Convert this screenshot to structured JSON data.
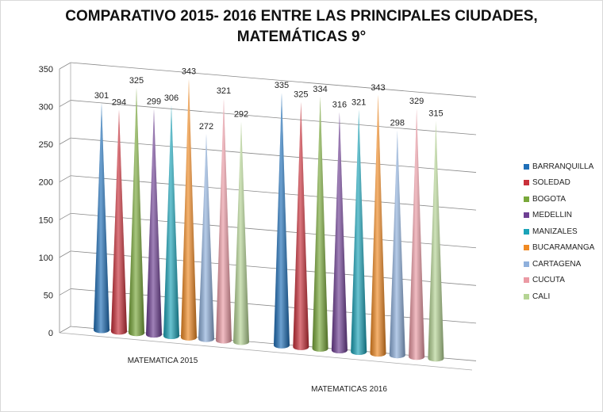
{
  "chart_data": {
    "type": "bar",
    "style": "3d-cone",
    "title": "COMPARATIVO 2015- 2016 ENTRE LAS PRINCIPALES CIUDADES,",
    "title_line2": "MATEMÁTICAS 9°",
    "categories": [
      "MATEMATICA 2015",
      "MATEMATICAS 2016"
    ],
    "ylim": [
      0,
      350
    ],
    "yticks": [
      0,
      50,
      100,
      150,
      200,
      250,
      300,
      350
    ],
    "grid": true,
    "legend_position": "right",
    "series": [
      {
        "name": "BARRANQUILLA",
        "color": "#1f6fb8",
        "values": [
          301,
          335
        ]
      },
      {
        "name": "SOLEDAD",
        "color": "#c9303a",
        "values": [
          294,
          325
        ]
      },
      {
        "name": "BOGOTA",
        "color": "#79a83a",
        "values": [
          325,
          334
        ]
      },
      {
        "name": "MEDELLIN",
        "color": "#6e3f93",
        "values": [
          299,
          316
        ]
      },
      {
        "name": "MANIZALES",
        "color": "#1ba3b8",
        "values": [
          306,
          321
        ]
      },
      {
        "name": "BUCARAMANGA",
        "color": "#f08a24",
        "values": [
          343,
          343
        ]
      },
      {
        "name": "CARTAGENA",
        "color": "#8fb0dc",
        "values": [
          272,
          298
        ]
      },
      {
        "name": "CUCUTA",
        "color": "#eb9aa4",
        "values": [
          321,
          329
        ]
      },
      {
        "name": "CALI",
        "color": "#b5d494",
        "values": [
          292,
          315
        ]
      }
    ]
  }
}
